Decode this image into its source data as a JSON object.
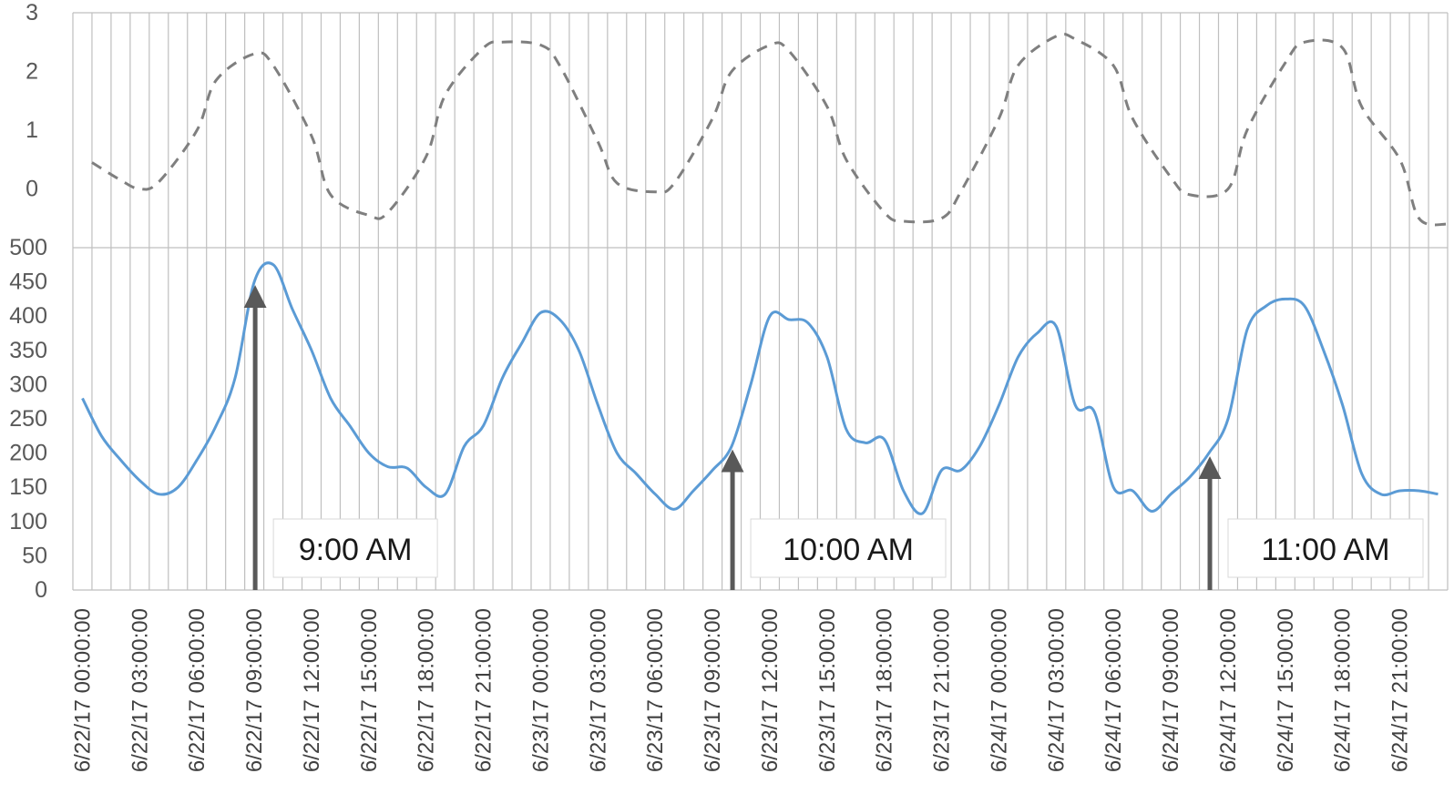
{
  "chart_data": [
    {
      "type": "line",
      "panel": "top",
      "title": "",
      "xlabel": "",
      "ylabel": "",
      "ylim": [
        -1,
        3
      ],
      "yticks": [
        0,
        1,
        2,
        3
      ],
      "grid": "vertical",
      "series": [
        {
          "style": "dashed",
          "color": "#7f7f7f",
          "x": [
            0.5,
            2,
            3,
            4,
            6,
            7,
            9,
            10,
            12,
            13,
            15,
            16,
            18,
            19,
            21,
            22,
            24,
            25,
            27,
            28,
            30,
            31,
            33,
            34,
            36,
            37,
            39,
            40,
            42,
            43,
            45,
            46,
            48,
            49,
            51,
            52,
            54,
            55,
            57,
            58,
            60,
            61,
            63,
            64,
            66,
            67,
            69,
            70,
            71.5
          ],
          "values": [
            0.45,
            0.15,
            0.0,
            0.12,
            1.0,
            1.85,
            2.3,
            2.1,
            0.9,
            -0.1,
            -0.45,
            -0.4,
            0.55,
            1.6,
            2.4,
            2.5,
            2.45,
            2.1,
            0.8,
            0.1,
            -0.05,
            0.1,
            1.2,
            2.0,
            2.45,
            2.35,
            1.4,
            0.5,
            -0.4,
            -0.55,
            -0.5,
            -0.05,
            1.2,
            2.1,
            2.6,
            2.55,
            2.1,
            1.2,
            0.2,
            -0.1,
            0.0,
            1.0,
            2.15,
            2.5,
            2.4,
            1.4,
            0.5,
            -0.5,
            -0.6
          ]
        }
      ]
    },
    {
      "type": "line",
      "panel": "bottom",
      "title": "",
      "xlabel": "",
      "ylabel": "",
      "ylim": [
        0,
        500
      ],
      "yticks": [
        0,
        50,
        100,
        150,
        200,
        250,
        300,
        350,
        400,
        450,
        500
      ],
      "grid": "vertical",
      "categories": [
        "6/22/17 00:00:00",
        "6/22/17 03:00:00",
        "6/22/17 06:00:00",
        "6/22/17 09:00:00",
        "6/22/17 12:00:00",
        "6/22/17 15:00:00",
        "6/22/17 18:00:00",
        "6/22/17 21:00:00",
        "6/23/17 00:00:00",
        "6/23/17 03:00:00",
        "6/23/17 06:00:00",
        "6/23/17 09:00:00",
        "6/23/17 12:00:00",
        "6/23/17 15:00:00",
        "6/23/17 18:00:00",
        "6/23/17 21:00:00",
        "6/24/17 00:00:00",
        "6/24/17 03:00:00",
        "6/24/17 06:00:00",
        "6/24/17 09:00:00",
        "6/24/17 12:00:00",
        "6/24/17 15:00:00",
        "6/24/17 18:00:00",
        "6/24/17 21:00:00"
      ],
      "series": [
        {
          "style": "solid",
          "color": "#5b9bd5",
          "x": [
            0,
            1,
            2,
            3,
            4,
            5,
            6,
            7,
            8,
            9,
            10,
            11,
            12,
            13,
            14,
            15,
            16,
            17,
            18,
            19,
            20,
            21,
            22,
            23,
            24,
            25,
            26,
            27,
            28,
            29,
            30,
            31,
            32,
            33,
            34,
            35,
            36,
            37,
            38,
            39,
            40,
            41,
            42,
            43,
            44,
            45,
            46,
            47,
            48,
            49,
            50,
            51,
            52,
            53,
            54,
            55,
            56,
            57,
            58,
            59,
            60,
            61,
            62,
            63,
            64,
            65,
            66,
            67,
            68,
            69,
            70,
            71
          ],
          "values": [
            280,
            225,
            190,
            160,
            140,
            150,
            190,
            240,
            310,
            450,
            475,
            410,
            350,
            280,
            240,
            200,
            180,
            178,
            150,
            140,
            210,
            240,
            310,
            360,
            405,
            395,
            350,
            270,
            200,
            170,
            140,
            118,
            145,
            175,
            210,
            300,
            400,
            395,
            390,
            340,
            235,
            215,
            220,
            145,
            112,
            175,
            175,
            210,
            270,
            340,
            375,
            385,
            270,
            260,
            150,
            145,
            115,
            140,
            165,
            200,
            250,
            380,
            415,
            425,
            415,
            350,
            270,
            170,
            140,
            145,
            145,
            140
          ]
        }
      ]
    }
  ],
  "annotations": [
    {
      "label": "9:00 AM",
      "x": 9
    },
    {
      "label": "10:00 AM",
      "x": 34
    },
    {
      "label": "11:00 AM",
      "x": 59
    }
  ],
  "colors": {
    "grid": "#bfbfbf",
    "axis_text": "#595959",
    "arrow": "#595959",
    "label_box_border": "#d9d9d9"
  }
}
